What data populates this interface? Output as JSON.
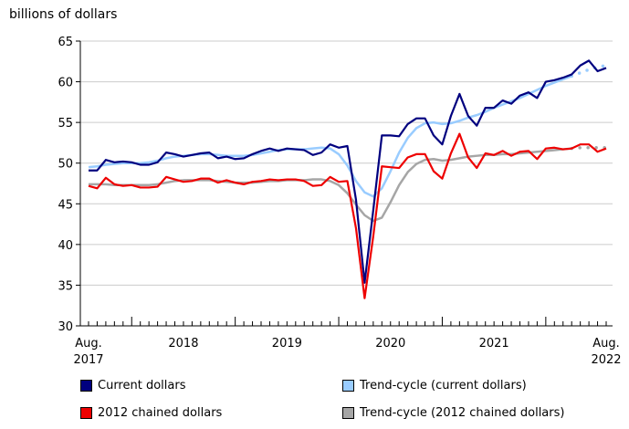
{
  "chart_data": {
    "type": "line",
    "ylabel": "billions of dollars",
    "ylim": [
      30,
      65
    ],
    "yticks": [
      30,
      35,
      40,
      45,
      50,
      55,
      60,
      65
    ],
    "x_start": "2017-08",
    "x_end": "2022-08",
    "x_tick_labels": [
      {
        "label": "Aug.",
        "sublabel": "2017",
        "month": "2017-08"
      },
      {
        "label": "2018",
        "sublabel": "",
        "month": "2018-07"
      },
      {
        "label": "2019",
        "sublabel": "",
        "month": "2019-07"
      },
      {
        "label": "2020",
        "sublabel": "",
        "month": "2020-07"
      },
      {
        "label": "2021",
        "sublabel": "",
        "month": "2021-07"
      },
      {
        "label": "Aug.",
        "sublabel": "2022",
        "month": "2022-08"
      }
    ],
    "grid": "horizontal",
    "legend_position": "bottom",
    "series": [
      {
        "name": "Current dollars",
        "color": "#00007f",
        "style": "solid",
        "values": [
          49.1,
          49.1,
          50.4,
          50.1,
          50.2,
          50.1,
          49.8,
          49.8,
          50.1,
          51.3,
          51.1,
          50.8,
          51.0,
          51.2,
          51.3,
          50.6,
          50.8,
          50.5,
          50.6,
          51.1,
          51.5,
          51.8,
          51.5,
          51.8,
          51.7,
          51.6,
          51.0,
          51.3,
          52.3,
          51.9,
          52.1,
          45.5,
          35.3,
          44.2,
          53.4,
          53.4,
          53.3,
          54.8,
          55.5,
          55.5,
          53.4,
          52.3,
          55.8,
          58.5,
          55.8,
          54.6,
          56.8,
          56.8,
          57.7,
          57.3,
          58.3,
          58.7,
          58.0,
          60.0,
          60.2,
          60.5,
          60.9,
          62.0,
          62.6,
          61.3,
          61.7
        ]
      },
      {
        "name": "Trend-cycle (current dollars)",
        "color": "#99ccff",
        "style": "solid_then_dotted",
        "values": [
          49.5,
          49.6,
          49.8,
          49.9,
          50.0,
          50.0,
          50.0,
          50.1,
          50.3,
          50.6,
          50.8,
          50.9,
          51.0,
          51.1,
          51.1,
          51.0,
          50.9,
          50.9,
          50.9,
          51.0,
          51.2,
          51.4,
          51.6,
          51.7,
          51.7,
          51.7,
          51.8,
          51.9,
          51.8,
          51.1,
          49.7,
          47.8,
          46.4,
          45.9,
          46.9,
          49.0,
          51.3,
          53.1,
          54.3,
          54.9,
          55.0,
          54.8,
          54.9,
          55.2,
          55.6,
          55.9,
          56.3,
          56.8,
          57.2,
          57.6,
          58.0,
          58.5,
          59.0,
          59.5,
          59.9,
          60.3,
          60.7,
          61.1,
          61.5,
          61.8,
          62.0
        ]
      },
      {
        "name": "2012 chained dollars",
        "color": "#ee0000",
        "style": "solid",
        "values": [
          47.2,
          46.9,
          48.2,
          47.4,
          47.2,
          47.3,
          47.0,
          47.0,
          47.1,
          48.3,
          48.0,
          47.7,
          47.8,
          48.1,
          48.1,
          47.6,
          47.9,
          47.6,
          47.4,
          47.7,
          47.8,
          48.0,
          47.9,
          48.0,
          48.0,
          47.8,
          47.2,
          47.3,
          48.3,
          47.7,
          47.8,
          42.0,
          33.4,
          41.0,
          49.6,
          49.5,
          49.4,
          50.7,
          51.1,
          51.1,
          49.0,
          48.1,
          51.2,
          53.6,
          50.7,
          49.4,
          51.2,
          51.0,
          51.5,
          50.9,
          51.4,
          51.5,
          50.5,
          51.8,
          51.9,
          51.7,
          51.8,
          52.3,
          52.3,
          51.4,
          51.8
        ]
      },
      {
        "name": "Trend-cycle (2012 chained dollars)",
        "color": "#a6a6a6",
        "style": "solid_then_dotted",
        "values": [
          47.4,
          47.4,
          47.4,
          47.3,
          47.3,
          47.3,
          47.3,
          47.3,
          47.4,
          47.6,
          47.8,
          47.9,
          47.9,
          47.9,
          47.9,
          47.8,
          47.7,
          47.6,
          47.6,
          47.6,
          47.7,
          47.8,
          47.8,
          47.9,
          47.9,
          47.9,
          48.0,
          48.0,
          47.8,
          47.3,
          46.3,
          44.9,
          43.6,
          42.9,
          43.3,
          45.2,
          47.3,
          48.9,
          49.9,
          50.4,
          50.5,
          50.3,
          50.4,
          50.6,
          50.8,
          50.9,
          51.0,
          51.0,
          51.1,
          51.1,
          51.2,
          51.3,
          51.4,
          51.5,
          51.6,
          51.7,
          51.8,
          51.9,
          51.9,
          51.9,
          51.9
        ]
      }
    ]
  }
}
